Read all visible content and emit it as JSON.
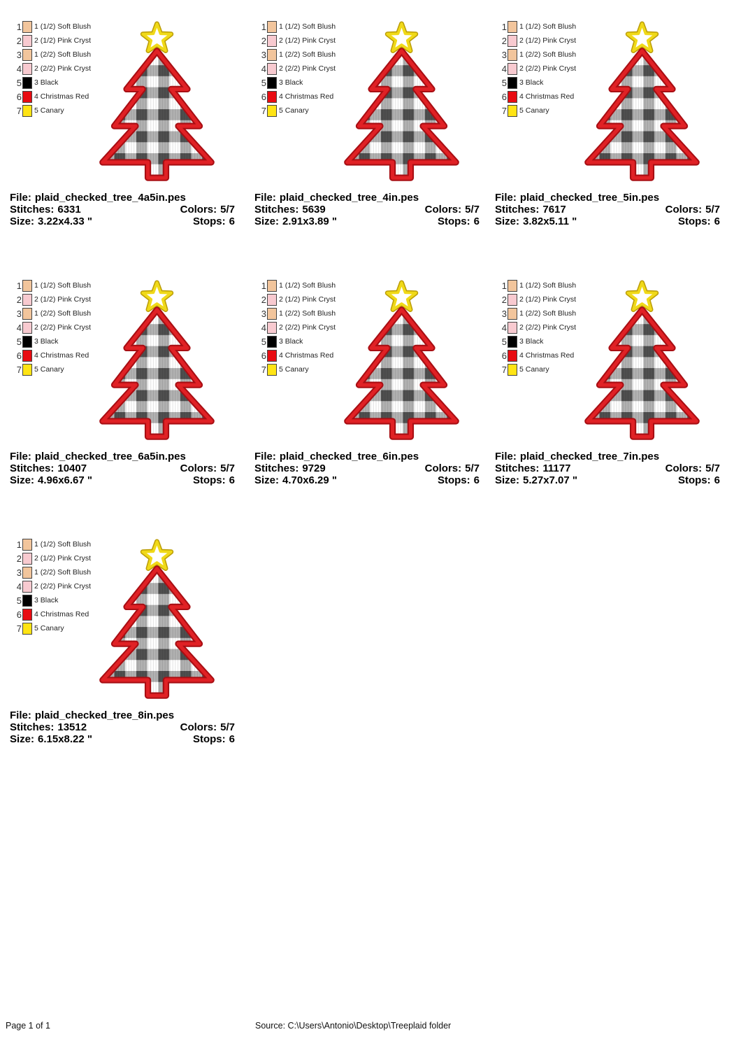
{
  "page": {
    "footer_page": "Page 1 of 1",
    "footer_source": "Source: C:\\Users\\Antonio\\Desktop\\Treeplaid folder"
  },
  "labels": {
    "file": "File:",
    "stitches": "Stitches:",
    "colors": "Colors:",
    "size": "Size:",
    "stops": "Stops:"
  },
  "legend": [
    {
      "num": "1",
      "color": "#f2c59c",
      "label": "1 (1/2) Soft Blush"
    },
    {
      "num": "2",
      "color": "#f8cad0",
      "label": "2 (1/2) Pink Cryst"
    },
    {
      "num": "3",
      "color": "#f2c59c",
      "label": "1 (2/2) Soft Blush"
    },
    {
      "num": "4",
      "color": "#f8cad0",
      "label": "2 (2/2) Pink Cryst"
    },
    {
      "num": "5",
      "color": "#000000",
      "label": "3 Black"
    },
    {
      "num": "6",
      "color": "#e80c12",
      "label": "4 Christmas Red"
    },
    {
      "num": "7",
      "color": "#ffe414",
      "label": "5 Canary"
    }
  ],
  "designs": [
    {
      "file": "plaid_checked_tree_4a5in.pes",
      "stitches": "6331",
      "colors": "5/7",
      "size": "3.22x4.33 \"",
      "stops": "6"
    },
    {
      "file": "plaid_checked_tree_4in.pes",
      "stitches": "5639",
      "colors": "5/7",
      "size": "2.91x3.89 \"",
      "stops": "6"
    },
    {
      "file": "plaid_checked_tree_5in.pes",
      "stitches": "7617",
      "colors": "5/7",
      "size": "3.82x5.11 \"",
      "stops": "6"
    },
    {
      "file": "plaid_checked_tree_6a5in.pes",
      "stitches": "10407",
      "colors": "5/7",
      "size": "4.96x6.67 \"",
      "stops": "6"
    },
    {
      "file": "plaid_checked_tree_6in.pes",
      "stitches": "9729",
      "colors": "5/7",
      "size": "4.70x6.29 \"",
      "stops": "6"
    },
    {
      "file": "plaid_checked_tree_7in.pes",
      "stitches": "11177",
      "colors": "5/7",
      "size": "5.27x7.07 \"",
      "stops": "6"
    },
    {
      "file": "plaid_checked_tree_8in.pes",
      "stitches": "13512",
      "colors": "5/7",
      "size": "6.15x8.22 \"",
      "stops": "6"
    }
  ],
  "artwork": {
    "outline_color": "#e02125",
    "outline_shadow": "#a80e13",
    "star_color": "#f0d918",
    "star_shadow": "#bb9d08",
    "star_center": "#ffffff",
    "plaid_dark": "#4f4f4f",
    "plaid_mid": "#b2b2b2",
    "plaid_light": "#ffffff"
  }
}
